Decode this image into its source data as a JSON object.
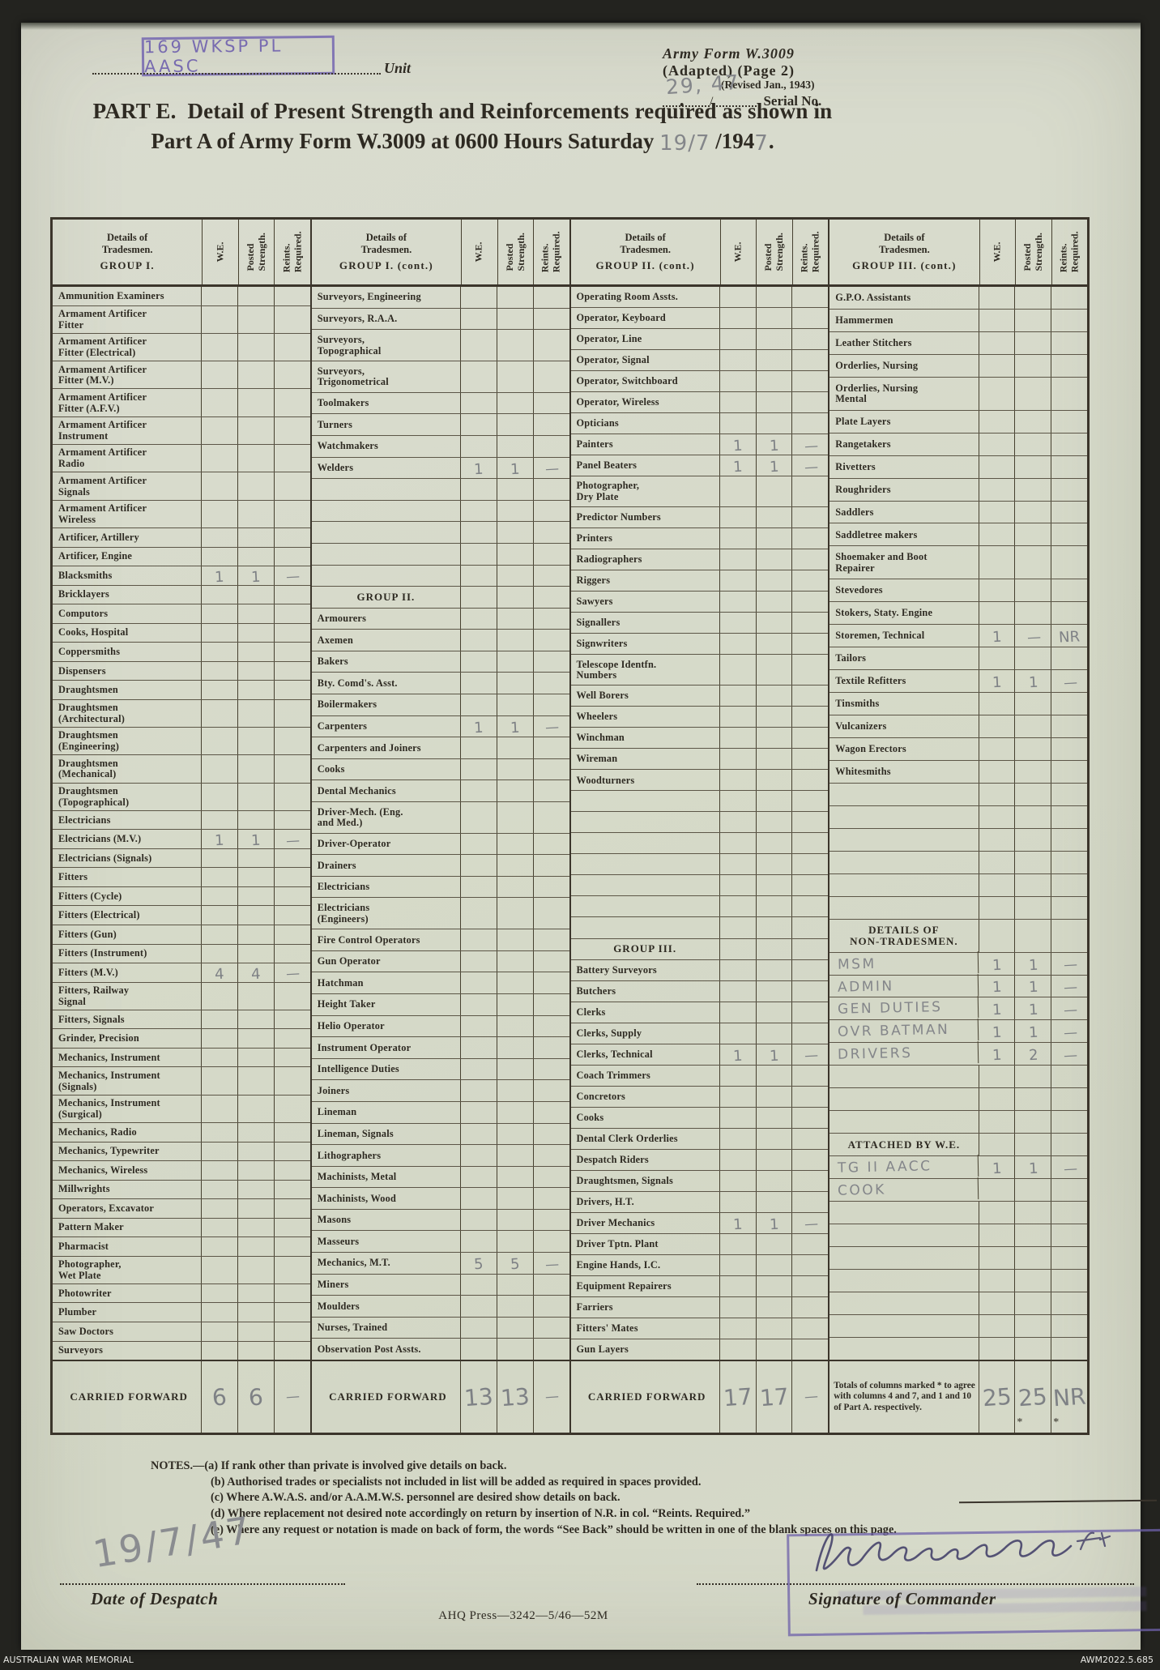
{
  "header": {
    "unit_stamp": "169 WKSP PL AASC",
    "unit_label": "Unit",
    "form_line1": "Army Form W.3009",
    "form_line2": "(Adapted) (Page 2)",
    "form_line3": "(Revised Jan., 1943)",
    "serial_handwritten": "29, 47",
    "serial_slash": "/",
    "serial_label": "Serial No.",
    "title_part": "PART E.",
    "title_line1": "Detail of Present Strength and Reinforcements required as shown in",
    "title_line2_pre": "Part A of Army Form W.3009 at 0600 Hours Saturday",
    "title_date_hw1": "19/7",
    "title_line2_mid": "/194",
    "title_date_hw2": "7",
    "title_end": "."
  },
  "table": {
    "col_headers": [
      [
        "W.E."
      ],
      [
        "Posted",
        "Strength."
      ],
      [
        "Reints.",
        "Required."
      ]
    ],
    "carried_forward_label": "CARRIED FORWARD",
    "groups": [
      {
        "header_lines": [
          "Details of",
          "Tradesmen.",
          "GROUP I."
        ],
        "rows": [
          {
            "l": "Ammunition Examiners"
          },
          {
            "l": "Armament Artificer\nFitter"
          },
          {
            "l": "Armament Artificer\nFitter (Electrical)"
          },
          {
            "l": "Armament Artificer\nFitter (M.V.)"
          },
          {
            "l": "Armament Artificer\nFitter (A.F.V.)"
          },
          {
            "l": "Armament Artificer\nInstrument"
          },
          {
            "l": "Armament Artificer\nRadio"
          },
          {
            "l": "Armament Artificer\nSignals"
          },
          {
            "l": "Armament Artificer\nWireless"
          },
          {
            "l": "Artificer, Artillery"
          },
          {
            "l": "Artificer, Engine"
          },
          {
            "l": "Blacksmiths",
            "v": [
              "1",
              "1",
              "—"
            ]
          },
          {
            "l": "Bricklayers"
          },
          {
            "l": "Computors"
          },
          {
            "l": "Cooks, Hospital"
          },
          {
            "l": "Coppersmiths"
          },
          {
            "l": "Dispensers"
          },
          {
            "l": "Draughtsmen"
          },
          {
            "l": "Draughtsmen\n(Architectural)"
          },
          {
            "l": "Draughtsmen\n(Engineering)"
          },
          {
            "l": "Draughtsmen\n(Mechanical)"
          },
          {
            "l": "Draughtsmen\n(Topographical)"
          },
          {
            "l": "Electricians"
          },
          {
            "l": "Electricians (M.V.)",
            "v": [
              "1",
              "1",
              "—"
            ]
          },
          {
            "l": "Electricians (Signals)"
          },
          {
            "l": "Fitters"
          },
          {
            "l": "Fitters (Cycle)"
          },
          {
            "l": "Fitters (Electrical)"
          },
          {
            "l": "Fitters (Gun)"
          },
          {
            "l": "Fitters (Instrument)"
          },
          {
            "l": "Fitters (M.V.)",
            "v": [
              "4",
              "4",
              "—"
            ]
          },
          {
            "l": "Fitters, Railway\nSignal"
          },
          {
            "l": "Fitters, Signals"
          },
          {
            "l": "Grinder, Precision"
          },
          {
            "l": "Mechanics, Instrument"
          },
          {
            "l": "Mechanics, Instrument\n(Signals)"
          },
          {
            "l": "Mechanics, Instrument\n(Surgical)"
          },
          {
            "l": "Mechanics, Radio"
          },
          {
            "l": "Mechanics, Typewriter"
          },
          {
            "l": "Mechanics, Wireless"
          },
          {
            "l": "Millwrights"
          },
          {
            "l": "Operators, Excavator"
          },
          {
            "l": "Pattern Maker"
          },
          {
            "l": "Pharmacist"
          },
          {
            "l": "Photographer,\nWet Plate"
          },
          {
            "l": "Photowriter"
          },
          {
            "l": "Plumber"
          },
          {
            "l": "Saw Doctors"
          },
          {
            "l": "Surveyors"
          }
        ],
        "carried": {
          "v": [
            "6",
            "6",
            "—"
          ]
        }
      },
      {
        "header_lines": [
          "Details of",
          "Tradesmen.",
          "GROUP I. (cont.)"
        ],
        "rows": [
          {
            "l": "Surveyors, Engineering"
          },
          {
            "l": "Surveyors, R.A.A."
          },
          {
            "l": "Surveyors,\nTopographical"
          },
          {
            "l": "Surveyors,\nTrigonometrical"
          },
          {
            "l": "Toolmakers"
          },
          {
            "l": "Turners"
          },
          {
            "l": "Watchmakers"
          },
          {
            "l": "Welders",
            "v": [
              "1",
              "1",
              "—"
            ]
          },
          {
            "l": ""
          },
          {
            "l": ""
          },
          {
            "l": ""
          },
          {
            "l": ""
          },
          {
            "l": ""
          },
          {
            "l": "GROUP II.",
            "s": 1
          },
          {
            "l": "Armourers"
          },
          {
            "l": "Axemen"
          },
          {
            "l": "Bakers"
          },
          {
            "l": "Bty. Comd's. Asst."
          },
          {
            "l": "Boilermakers"
          },
          {
            "l": "Carpenters",
            "v": [
              "1",
              "1",
              "—"
            ]
          },
          {
            "l": "Carpenters and Joiners"
          },
          {
            "l": "Cooks"
          },
          {
            "l": "Dental Mechanics"
          },
          {
            "l": "Driver-Mech. (Eng.\nand Med.)"
          },
          {
            "l": "Driver-Operator"
          },
          {
            "l": "Drainers"
          },
          {
            "l": "Electricians"
          },
          {
            "l": "Electricians\n(Engineers)"
          },
          {
            "l": "Fire Control Operators"
          },
          {
            "l": "Gun Operator"
          },
          {
            "l": "Hatchman"
          },
          {
            "l": "Height Taker"
          },
          {
            "l": "Helio Operator"
          },
          {
            "l": "Instrument Operator"
          },
          {
            "l": "Intelligence Duties"
          },
          {
            "l": "Joiners"
          },
          {
            "l": "Lineman"
          },
          {
            "l": "Lineman, Signals"
          },
          {
            "l": "Lithographers"
          },
          {
            "l": "Machinists, Metal"
          },
          {
            "l": "Machinists, Wood"
          },
          {
            "l": "Masons"
          },
          {
            "l": "Masseurs"
          },
          {
            "l": "Mechanics, M.T.",
            "v": [
              "5",
              "5",
              "—"
            ]
          },
          {
            "l": "Miners"
          },
          {
            "l": "Moulders"
          },
          {
            "l": "Nurses, Trained"
          },
          {
            "l": "Observation Post Assts."
          }
        ],
        "carried": {
          "v": [
            "13",
            "13",
            "—"
          ]
        }
      },
      {
        "header_lines": [
          "Details of",
          "Tradesmen.",
          "GROUP II. (cont.)"
        ],
        "rows": [
          {
            "l": "Operating Room Assts."
          },
          {
            "l": "Operator, Keyboard"
          },
          {
            "l": "Operator, Line"
          },
          {
            "l": "Operator, Signal"
          },
          {
            "l": "Operator, Switchboard"
          },
          {
            "l": "Operator, Wireless"
          },
          {
            "l": "Opticians"
          },
          {
            "l": "Painters",
            "v": [
              "1",
              "1",
              "—"
            ]
          },
          {
            "l": "Panel Beaters",
            "v": [
              "1",
              "1",
              "—"
            ]
          },
          {
            "l": "Photographer,\nDry Plate"
          },
          {
            "l": "Predictor Numbers"
          },
          {
            "l": "Printers"
          },
          {
            "l": "Radiographers"
          },
          {
            "l": "Riggers"
          },
          {
            "l": "Sawyers"
          },
          {
            "l": "Signallers"
          },
          {
            "l": "Signwriters"
          },
          {
            "l": "Telescope Identfn.\nNumbers"
          },
          {
            "l": "Well Borers"
          },
          {
            "l": "Wheelers"
          },
          {
            "l": "Winchman"
          },
          {
            "l": "Wireman"
          },
          {
            "l": "Woodturners"
          },
          {
            "l": ""
          },
          {
            "l": ""
          },
          {
            "l": ""
          },
          {
            "l": ""
          },
          {
            "l": ""
          },
          {
            "l": ""
          },
          {
            "l": ""
          },
          {
            "l": "GROUP III.",
            "s": 1
          },
          {
            "l": "Battery Surveyors"
          },
          {
            "l": "Butchers"
          },
          {
            "l": "Clerks"
          },
          {
            "l": "Clerks, Supply"
          },
          {
            "l": "Clerks, Technical",
            "v": [
              "1",
              "1",
              "—"
            ]
          },
          {
            "l": "Coach Trimmers"
          },
          {
            "l": "Concretors"
          },
          {
            "l": "Cooks"
          },
          {
            "l": "Dental Clerk Orderlies"
          },
          {
            "l": "Despatch Riders"
          },
          {
            "l": "Draughtsmen, Signals"
          },
          {
            "l": "Drivers, H.T."
          },
          {
            "l": "Driver Mechanics",
            "v": [
              "1",
              "1",
              "—"
            ]
          },
          {
            "l": "Driver Tptn. Plant"
          },
          {
            "l": "Engine Hands, I.C."
          },
          {
            "l": "Equipment Repairers"
          },
          {
            "l": "Farriers"
          },
          {
            "l": "Fitters' Mates"
          },
          {
            "l": "Gun Layers"
          }
        ],
        "carried": {
          "v": [
            "17",
            "17",
            "—"
          ]
        }
      },
      {
        "header_lines": [
          "Details of",
          "Tradesmen.",
          "GROUP III. (cont.)"
        ],
        "rows": [
          {
            "l": "G.P.O. Assistants"
          },
          {
            "l": "Hammermen"
          },
          {
            "l": "Leather Stitchers"
          },
          {
            "l": "Orderlies, Nursing"
          },
          {
            "l": "Orderlies, Nursing\nMental"
          },
          {
            "l": "Plate Layers"
          },
          {
            "l": "Rangetakers"
          },
          {
            "l": "Rivetters"
          },
          {
            "l": "Roughriders"
          },
          {
            "l": "Saddlers"
          },
          {
            "l": "Saddletree makers"
          },
          {
            "l": "Shoemaker and Boot\nRepairer"
          },
          {
            "l": "Stevedores"
          },
          {
            "l": "Stokers, Staty. Engine"
          },
          {
            "l": "Storemen, Technical",
            "v": [
              "1",
              "—",
              "NR"
            ]
          },
          {
            "l": "Tailors"
          },
          {
            "l": "Textile Refitters",
            "v": [
              "1",
              "1",
              "—"
            ]
          },
          {
            "l": "Tinsmiths"
          },
          {
            "l": "Vulcanizers"
          },
          {
            "l": "Wagon Erectors"
          },
          {
            "l": "Whitesmiths"
          },
          {
            "l": ""
          },
          {
            "l": ""
          },
          {
            "l": ""
          },
          {
            "l": ""
          },
          {
            "l": ""
          },
          {
            "l": ""
          },
          {
            "l": "DETAILS OF\nNON-TRADESMEN.",
            "s": 1
          },
          {
            "l": "MSM",
            "h": 1,
            "v": [
              "1",
              "1",
              "—"
            ]
          },
          {
            "l": "ADMIN",
            "h": 1,
            "v": [
              "1",
              "1",
              "—"
            ]
          },
          {
            "l": "GEN DUTIES",
            "h": 1,
            "v": [
              "1",
              "1",
              "—"
            ]
          },
          {
            "l": "OVR BATMAN",
            "h": 1,
            "v": [
              "1",
              "1",
              "—"
            ]
          },
          {
            "l": "DRIVERS",
            "h": 1,
            "v": [
              "1",
              "2",
              "—"
            ]
          },
          {
            "l": ""
          },
          {
            "l": ""
          },
          {
            "l": ""
          },
          {
            "l": "ATTACHED BY W.E.",
            "s": 1
          },
          {
            "l": "TG II AACC",
            "h": 1,
            "v": [
              "1",
              "1",
              "—"
            ]
          },
          {
            "l": "COOK",
            "h": 1
          },
          {
            "l": ""
          },
          {
            "l": ""
          },
          {
            "l": ""
          },
          {
            "l": ""
          },
          {
            "l": ""
          },
          {
            "l": ""
          },
          {
            "l": ""
          }
        ],
        "totals": {
          "note": "Totals of columns marked * to agree with columns 4 and 7, and 1 and 10 of Part A. respectively.",
          "v": [
            "25",
            "25",
            "NR"
          ],
          "asterisk": [
            false,
            true,
            true
          ]
        }
      }
    ]
  },
  "notes": {
    "line_a": "NOTES.—(a) If rank other than private is involved give details on back.",
    "line_b": "(b) Authorised trades or specialists not included in list will be added as required in spaces provided.",
    "line_c": "(c) Where A.W.A.S. and/or A.A.M.W.S. personnel are desired show details on back.",
    "line_d": "(d) Where replacement not desired note accordingly on return by insertion of N.R. in col. “Reints. Required.”",
    "line_e": "(e) Where any request or notation is made on back of form, the words “See Back” should be written in one of the blank spaces on this page."
  },
  "bottom": {
    "date_handwritten": "19/7/47",
    "date_label": "Date of Despatch",
    "press_imprint": "AHQ Press—3242—5/46—52M",
    "signature_label": "Signature of Commander"
  },
  "footer": {
    "archive_label": "AUSTRALIAN WAR MEMORIAL",
    "item_id": "AWM2022.5.685"
  },
  "colors": {
    "paper": "#d7dbcb",
    "ink": "#2e2a22",
    "pencil": "#84868a",
    "stamp_purple": "#7066ae",
    "mat_black": "#23231f"
  }
}
